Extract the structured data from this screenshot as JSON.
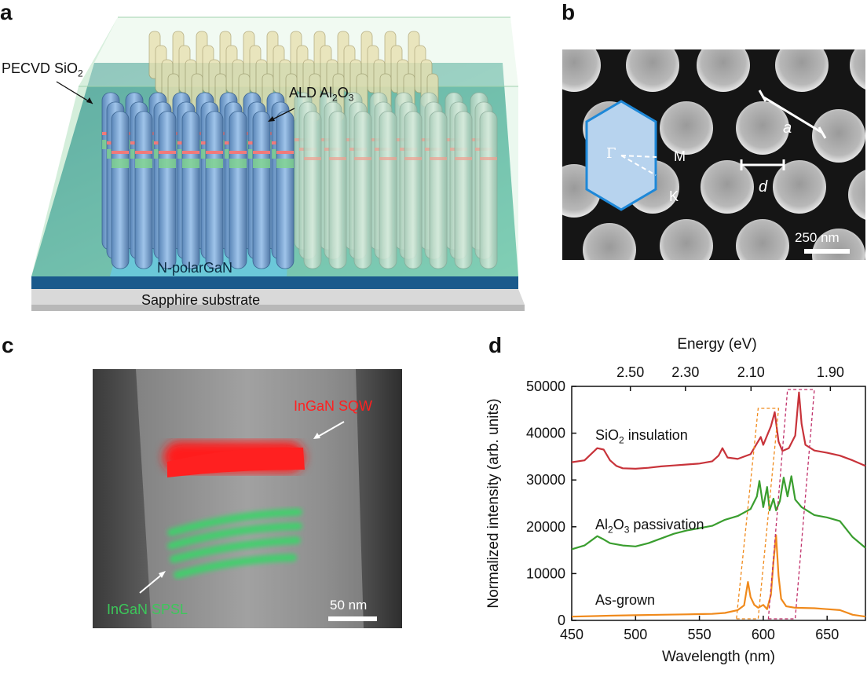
{
  "figure": {
    "panel_a": {
      "letter": "a",
      "label_pecvd_main": "PECVD SiO",
      "label_pecvd_sub": "2",
      "label_ald_main": "ALD Al",
      "label_ald_sub1": "2",
      "label_ald_mid": "O",
      "label_ald_sub2": "3",
      "label_npolar": "N-polarGaN",
      "label_substrate": "Sapphire substrate"
    },
    "panel_b": {
      "letter": "b",
      "label_gamma": "Γ",
      "label_m": "M",
      "label_k": "K",
      "label_a": "a",
      "label_d": "d",
      "scale_bar": "250 nm"
    },
    "panel_c": {
      "letter": "c",
      "label_sqw": "InGaN SQW",
      "label_spsl": "InGaN SPSL",
      "scale_bar": "50 nm"
    },
    "panel_d": {
      "letter": "d",
      "label_sio2_main": "SiO",
      "label_sio2_sub": "2",
      "label_sio2_rest": " insulation",
      "label_al2o3_main": "Al",
      "label_al2o3_sub1": "2",
      "label_al2o3_mid": "O",
      "label_al2o3_sub2": "3",
      "label_al2o3_rest": " passivation",
      "label_asgrown": "As-grown"
    }
  },
  "colors": {
    "sio2": "#c8333a",
    "al2o3": "#3a9e2f",
    "asgrown": "#f08a1c",
    "box_orange": "#f08a1c",
    "box_magenta": "#c0306a"
  },
  "chart_data": {
    "type": "line",
    "xlabel": "Wavelength (nm)",
    "ylabel": "Normalized intensity (arb. units)",
    "x2label": "Energy (eV)",
    "xlim": [
      450,
      680
    ],
    "ylim": [
      0,
      50000
    ],
    "xticks": [
      "450",
      "500",
      "550",
      "600",
      "650"
    ],
    "xtick_values": [
      450,
      500,
      550,
      600,
      650
    ],
    "yticks": [
      "0",
      "10000",
      "20000",
      "30000",
      "40000",
      "50000"
    ],
    "ytick_values": [
      0,
      10000,
      20000,
      30000,
      40000,
      50000
    ],
    "x2ticks": [
      "2.50",
      "2.30",
      "2.10",
      "1.90"
    ],
    "x2tick_values": [
      2.5,
      2.3,
      2.1,
      1.9
    ],
    "series": [
      {
        "name": "SiO2 insulation",
        "x": [
          450,
          460,
          465,
          470,
          475,
          480,
          485,
          490,
          500,
          510,
          520,
          530,
          540,
          550,
          560,
          565,
          568,
          572,
          580,
          590,
          595,
          598,
          600,
          603,
          606,
          609,
          612,
          615,
          620,
          625,
          628,
          630,
          633,
          640,
          650,
          660,
          670,
          680
        ],
        "values": [
          33800,
          34200,
          35500,
          36800,
          36500,
          34200,
          33000,
          32500,
          32400,
          32600,
          32900,
          33100,
          33300,
          33500,
          34000,
          35200,
          36800,
          34800,
          34500,
          35500,
          37800,
          39200,
          37500,
          39500,
          41500,
          44500,
          38200,
          36200,
          36800,
          39500,
          48700,
          42000,
          37500,
          36300,
          35800,
          35200,
          34200,
          33000
        ]
      },
      {
        "name": "Al2O3 passivation",
        "x": [
          450,
          460,
          465,
          470,
          475,
          480,
          490,
          500,
          510,
          520,
          530,
          540,
          550,
          560,
          570,
          580,
          590,
          595,
          597,
          600,
          603,
          605,
          608,
          610,
          613,
          616,
          619,
          622,
          625,
          630,
          640,
          650,
          660,
          670,
          680
        ],
        "values": [
          15200,
          16000,
          17000,
          18000,
          17300,
          16500,
          16000,
          15800,
          16500,
          17500,
          18500,
          19200,
          19700,
          20200,
          21500,
          22300,
          23800,
          26500,
          29800,
          24200,
          28500,
          23500,
          26000,
          23500,
          25500,
          30500,
          26500,
          30800,
          25800,
          24200,
          22500,
          22000,
          21200,
          17800,
          15500
        ]
      },
      {
        "name": "As-grown",
        "x": [
          450,
          480,
          500,
          520,
          540,
          560,
          570,
          580,
          585,
          588,
          590,
          593,
          596,
          600,
          603,
          606,
          608,
          610,
          612,
          614,
          618,
          625,
          640,
          650,
          660,
          670,
          680
        ],
        "values": [
          800,
          1000,
          1100,
          1200,
          1300,
          1400,
          1600,
          2200,
          3200,
          8200,
          5000,
          3300,
          2700,
          3300,
          2400,
          5500,
          12500,
          18200,
          9500,
          4600,
          3000,
          2700,
          2600,
          2400,
          2200,
          1200,
          800
        ]
      }
    ]
  }
}
